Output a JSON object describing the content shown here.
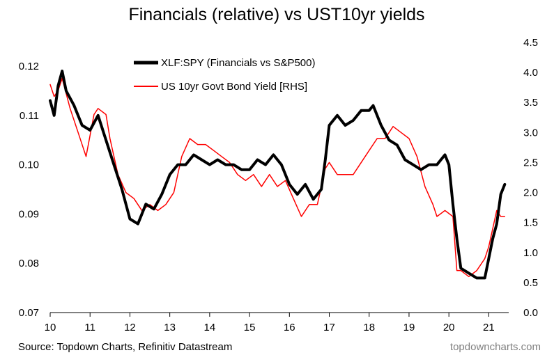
{
  "chart_data": {
    "type": "line",
    "title": "Financials (relative) vs UST10yr yields",
    "x_ticks": [
      "10",
      "11",
      "12",
      "13",
      "14",
      "15",
      "16",
      "17",
      "18",
      "19",
      "20",
      "21"
    ],
    "xlim": [
      10,
      21.5
    ],
    "y_left": {
      "ticks": [
        "0.07",
        "0.08",
        "0.09",
        "0.10",
        "0.11",
        "0.12"
      ],
      "ylim": [
        0.07,
        0.12
      ]
    },
    "y_right": {
      "ticks": [
        "0.0",
        "0.5",
        "1.0",
        "1.5",
        "2.0",
        "2.5",
        "3.0",
        "3.5",
        "4.0",
        "4.5"
      ],
      "ylim": [
        0.0,
        4.5
      ]
    },
    "legend_position": "top-center",
    "grid": false,
    "colors": {
      "xlf": "#000000",
      "ust": "#ff0000"
    },
    "series": [
      {
        "name": "XLF:SPY (Financials vs S&P500)",
        "axis": "left",
        "x": [
          10.0,
          10.1,
          10.2,
          10.3,
          10.4,
          10.6,
          10.8,
          11.0,
          11.2,
          11.4,
          11.6,
          11.8,
          12.0,
          12.2,
          12.4,
          12.6,
          12.8,
          13.0,
          13.2,
          13.4,
          13.6,
          13.8,
          14.0,
          14.2,
          14.4,
          14.6,
          14.8,
          15.0,
          15.2,
          15.4,
          15.6,
          15.8,
          16.0,
          16.2,
          16.4,
          16.6,
          16.8,
          16.9,
          17.0,
          17.2,
          17.4,
          17.6,
          17.8,
          18.0,
          18.1,
          18.3,
          18.5,
          18.7,
          18.9,
          19.1,
          19.3,
          19.5,
          19.7,
          19.9,
          20.0,
          20.1,
          20.2,
          20.3,
          20.5,
          20.7,
          20.9,
          21.0,
          21.1,
          21.2,
          21.3,
          21.4
        ],
        "values": [
          0.113,
          0.11,
          0.116,
          0.119,
          0.115,
          0.112,
          0.108,
          0.107,
          0.11,
          0.105,
          0.1,
          0.095,
          0.089,
          0.088,
          0.092,
          0.091,
          0.094,
          0.098,
          0.1,
          0.1,
          0.102,
          0.101,
          0.1,
          0.101,
          0.1,
          0.1,
          0.099,
          0.099,
          0.101,
          0.1,
          0.102,
          0.1,
          0.096,
          0.094,
          0.096,
          0.093,
          0.095,
          0.101,
          0.108,
          0.11,
          0.108,
          0.109,
          0.111,
          0.111,
          0.112,
          0.108,
          0.105,
          0.104,
          0.101,
          0.1,
          0.099,
          0.1,
          0.1,
          0.102,
          0.1,
          0.092,
          0.085,
          0.079,
          0.078,
          0.077,
          0.077,
          0.081,
          0.085,
          0.088,
          0.094,
          0.096
        ]
      },
      {
        "name": "US 10yr Govt Bond Yield [RHS]",
        "axis": "right",
        "x": [
          10.0,
          10.1,
          10.2,
          10.3,
          10.5,
          10.7,
          10.9,
          11.1,
          11.2,
          11.4,
          11.5,
          11.7,
          11.9,
          12.1,
          12.3,
          12.5,
          12.7,
          12.9,
          13.1,
          13.3,
          13.5,
          13.7,
          13.9,
          14.1,
          14.3,
          14.5,
          14.7,
          14.9,
          15.1,
          15.3,
          15.5,
          15.7,
          15.9,
          16.1,
          16.3,
          16.5,
          16.7,
          16.9,
          17.0,
          17.2,
          17.4,
          17.6,
          17.8,
          18.0,
          18.2,
          18.4,
          18.6,
          18.8,
          19.0,
          19.2,
          19.4,
          19.6,
          19.7,
          19.9,
          20.1,
          20.2,
          20.3,
          20.5,
          20.7,
          20.9,
          21.0,
          21.1,
          21.2,
          21.3,
          21.4
        ],
        "values": [
          3.8,
          3.6,
          3.7,
          3.9,
          3.4,
          3.0,
          2.6,
          3.3,
          3.4,
          3.3,
          2.9,
          2.3,
          2.0,
          1.9,
          1.7,
          1.8,
          1.7,
          1.8,
          2.0,
          2.6,
          2.9,
          2.8,
          2.8,
          2.7,
          2.6,
          2.5,
          2.3,
          2.2,
          2.3,
          2.1,
          2.3,
          2.1,
          2.2,
          1.9,
          1.6,
          1.8,
          1.8,
          2.4,
          2.5,
          2.3,
          2.3,
          2.3,
          2.5,
          2.7,
          2.9,
          2.9,
          3.1,
          3.0,
          2.9,
          2.6,
          2.1,
          1.8,
          1.6,
          1.7,
          1.6,
          0.7,
          0.7,
          0.6,
          0.7,
          0.9,
          1.1,
          1.4,
          1.7,
          1.6,
          1.6
        ]
      }
    ]
  },
  "footer": {
    "source": "Source: Topdown Charts, Refinitiv Datastream",
    "brand": "topdowncharts.com"
  }
}
